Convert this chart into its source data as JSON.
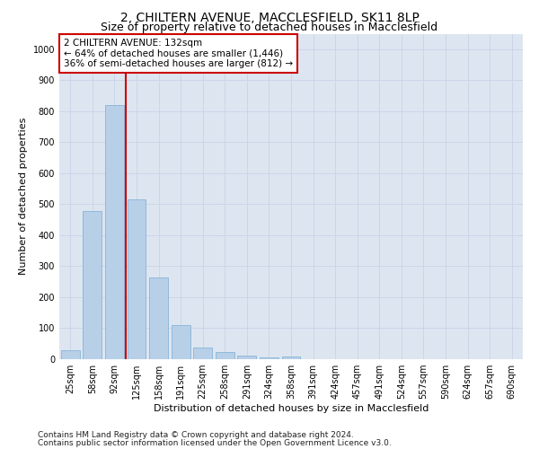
{
  "title": "2, CHILTERN AVENUE, MACCLESFIELD, SK11 8LP",
  "subtitle": "Size of property relative to detached houses in Macclesfield",
  "xlabel": "Distribution of detached houses by size in Macclesfield",
  "ylabel": "Number of detached properties",
  "footnote1": "Contains HM Land Registry data © Crown copyright and database right 2024.",
  "footnote2": "Contains public sector information licensed under the Open Government Licence v3.0.",
  "categories": [
    "25sqm",
    "58sqm",
    "92sqm",
    "125sqm",
    "158sqm",
    "191sqm",
    "225sqm",
    "258sqm",
    "291sqm",
    "324sqm",
    "358sqm",
    "391sqm",
    "424sqm",
    "457sqm",
    "491sqm",
    "524sqm",
    "557sqm",
    "590sqm",
    "624sqm",
    "657sqm",
    "690sqm"
  ],
  "values": [
    28,
    478,
    820,
    515,
    265,
    110,
    38,
    22,
    12,
    5,
    8,
    0,
    0,
    0,
    0,
    0,
    0,
    0,
    0,
    0,
    0
  ],
  "bar_color": "#b8cfe8",
  "bar_edge_color": "#7aadd4",
  "property_line_x": 2.5,
  "property_line_color": "#cc0000",
  "annotation_line1": "2 CHILTERN AVENUE: 132sqm",
  "annotation_line2": "← 64% of detached houses are smaller (1,446)",
  "annotation_line3": "36% of semi-detached houses are larger (812) →",
  "annotation_box_color": "#cc0000",
  "annotation_bg_color": "#ffffff",
  "ylim": [
    0,
    1050
  ],
  "yticks": [
    0,
    100,
    200,
    300,
    400,
    500,
    600,
    700,
    800,
    900,
    1000
  ],
  "grid_color": "#ccd5e8",
  "bg_color": "#dde6f0",
  "title_fontsize": 10,
  "subtitle_fontsize": 9,
  "axis_label_fontsize": 8,
  "tick_fontsize": 7,
  "annotation_fontsize": 7.5,
  "footnote_fontsize": 6.5
}
